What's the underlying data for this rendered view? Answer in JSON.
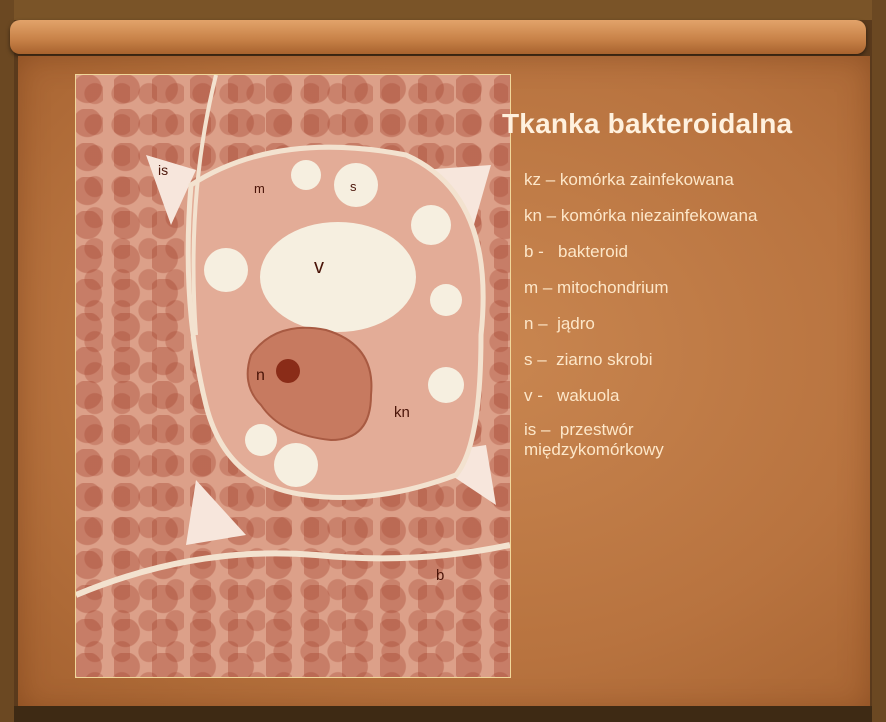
{
  "slide": {
    "title": "Tkanka bakteroidalna",
    "legend": [
      "kz – komórka zainfekowana",
      "kn – komórka niezainfekowana",
      "b -   bakteroid",
      "m – mitochondrium",
      "n –  jądro",
      "s –  ziarno skrobi",
      "v -   wakuola",
      "is –  przestwór\nmiędzykomórkowy"
    ]
  },
  "micrograph": {
    "labels": {
      "v": "v",
      "n": "n",
      "kn": "kn",
      "is": "is",
      "s": "s",
      "m": "m",
      "b": "b"
    }
  }
}
